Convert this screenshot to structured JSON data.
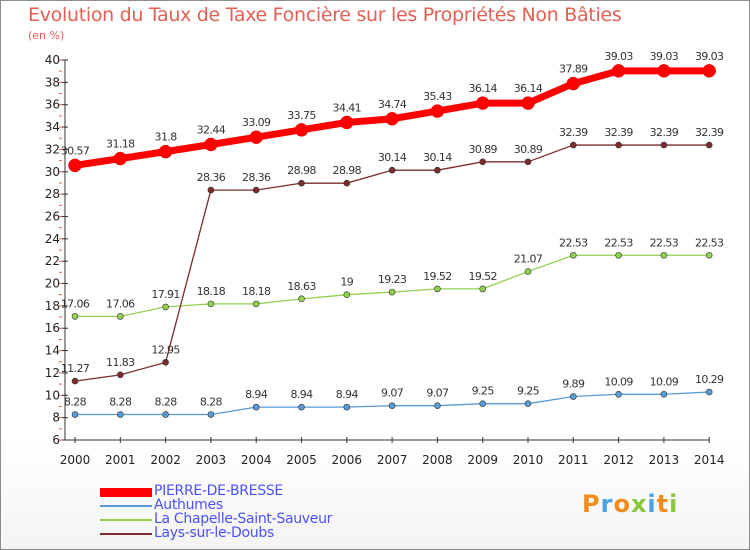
{
  "title": "Evolution du Taux de Taxe Foncière sur les Propriétés Non Bâties",
  "unit_label": "(en %)",
  "logo_text": "Proxiti",
  "chart_data": {
    "type": "line",
    "x": [
      "2000",
      "2001",
      "2002",
      "2003",
      "2004",
      "2005",
      "2006",
      "2007",
      "2008",
      "2009",
      "2010",
      "2011",
      "2012",
      "2013",
      "2014"
    ],
    "ylim": [
      6,
      40
    ],
    "yticks": [
      6,
      8,
      10,
      12,
      14,
      16,
      18,
      20,
      22,
      24,
      26,
      28,
      30,
      32,
      34,
      36,
      38,
      40
    ],
    "grid": false,
    "legend_position": "bottom-left",
    "series": [
      {
        "name": "PIERRE-DE-BRESSE",
        "color": "#ff0000",
        "values": [
          30.57,
          31.18,
          31.8,
          32.44,
          33.09,
          33.75,
          34.41,
          34.74,
          35.43,
          36.14,
          36.14,
          37.89,
          39.03,
          39.03,
          39.03
        ],
        "labels": [
          "30.57",
          "31.18",
          "31.8",
          "32.44",
          "33.09",
          "33.75",
          "34.41",
          "34.74",
          "35.43",
          "36.14",
          "36.14",
          "37.89",
          "39.03",
          "39.03",
          "39.03"
        ]
      },
      {
        "name": "Authumes",
        "color": "#5b9bd5",
        "values": [
          8.28,
          8.28,
          8.28,
          8.28,
          8.94,
          8.94,
          8.94,
          9.07,
          9.07,
          9.25,
          9.25,
          9.89,
          10.09,
          10.09,
          10.29
        ],
        "labels": [
          "8.28",
          "8.28",
          "8.28",
          "8.28",
          "8.94",
          "8.94",
          "8.94",
          "9.07",
          "9.07",
          "9.25",
          "9.25",
          "9.89",
          "10.09",
          "10.09",
          "10.29"
        ]
      },
      {
        "name": "La Chapelle-Saint-Sauveur",
        "color": "#92d050",
        "values": [
          17.06,
          17.06,
          17.91,
          18.18,
          18.18,
          18.63,
          19,
          19.23,
          19.52,
          19.52,
          21.07,
          22.53,
          22.53,
          22.53,
          22.53
        ],
        "labels": [
          "17.06",
          "17.06",
          "17.91",
          "18.18",
          "18.18",
          "18.63",
          "19",
          "19.23",
          "19.52",
          "19.52",
          "21.07",
          "22.53",
          "22.53",
          "22.53",
          "22.53"
        ]
      },
      {
        "name": "Lays-sur-le-Doubs",
        "color": "#7b2c2c",
        "values": [
          11.27,
          11.83,
          12.95,
          28.36,
          28.36,
          28.98,
          28.98,
          30.14,
          30.14,
          30.89,
          30.89,
          32.39,
          32.39,
          32.39,
          32.39
        ],
        "labels": [
          "11.27",
          "11.83",
          "12.95",
          "28.36",
          "28.36",
          "28.98",
          "28.98",
          "30.14",
          "30.14",
          "30.89",
          "30.89",
          "32.39",
          "32.39",
          "32.39",
          "32.39"
        ]
      }
    ]
  }
}
